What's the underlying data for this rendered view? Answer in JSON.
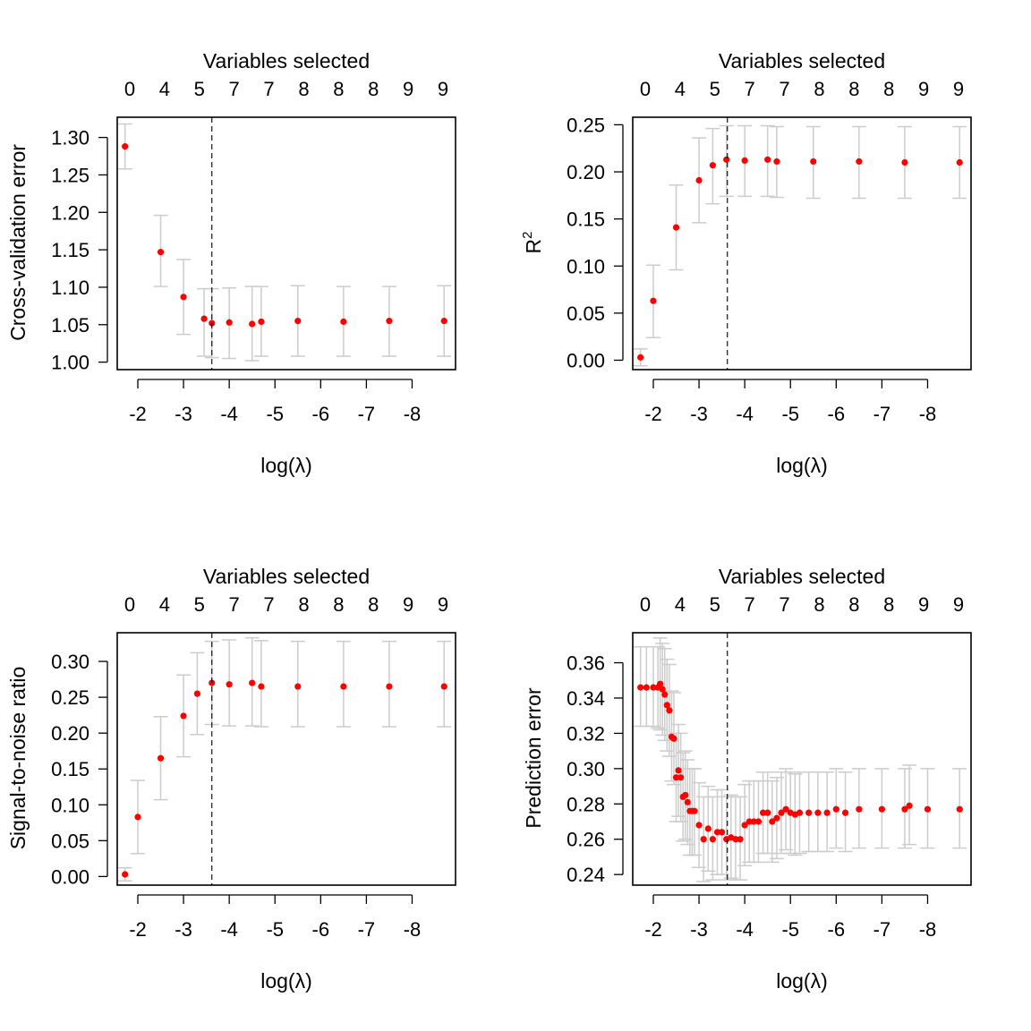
{
  "figure": {
    "background": "#ffffff"
  },
  "style": {
    "point_color": "#ff0000",
    "errorbar_color": "#cccccc",
    "vline_color": "#000000"
  },
  "chart_data": [
    {
      "type": "scatter",
      "title": "",
      "xlabel": "log(λ)",
      "ylabel": "Cross-validation error",
      "top_axis_label": "Variables selected",
      "top_ticks": [
        "0",
        "4",
        "5",
        "7",
        "7",
        "8",
        "8",
        "8",
        "9",
        "9"
      ],
      "xlim": [
        -1.55,
        -8.95
      ],
      "x_ticks": [
        -2,
        -3,
        -4,
        -5,
        -6,
        -7,
        -8
      ],
      "x_tick_labels": [
        "-2",
        "-3",
        "-4",
        "-5",
        "-6",
        "-7",
        "-8"
      ],
      "ylim": [
        0.99,
        1.327
      ],
      "y_ticks": [
        1.0,
        1.05,
        1.1,
        1.15,
        1.2,
        1.25,
        1.3
      ],
      "y_tick_labels": [
        "1.00",
        "1.05",
        "1.10",
        "1.15",
        "1.20",
        "1.25",
        "1.30"
      ],
      "vline_x": -3.62,
      "series": [
        {
          "x": [
            -1.72,
            -2.5,
            -3.0,
            -3.45,
            -3.62,
            -4.0,
            -4.5,
            -4.7,
            -5.5,
            -6.5,
            -7.5,
            -8.7
          ],
          "y": [
            1.288,
            1.147,
            1.087,
            1.058,
            1.052,
            1.053,
            1.051,
            1.054,
            1.055,
            1.054,
            1.055,
            1.055
          ],
          "err_lo": [
            1.258,
            1.101,
            1.037,
            1.008,
            1.006,
            1.005,
            1.002,
            1.008,
            1.008,
            1.008,
            1.008,
            1.008
          ],
          "err_hi": [
            1.318,
            1.196,
            1.137,
            1.098,
            1.098,
            1.099,
            1.101,
            1.101,
            1.102,
            1.101,
            1.101,
            1.102
          ]
        }
      ]
    },
    {
      "type": "scatter",
      "title": "",
      "xlabel": "log(λ)",
      "ylabel": "R",
      "ylabel_superscript": "2",
      "top_axis_label": "Variables selected",
      "top_ticks": [
        "0",
        "4",
        "5",
        "7",
        "7",
        "8",
        "8",
        "8",
        "9",
        "9"
      ],
      "xlim": [
        -1.55,
        -8.95
      ],
      "x_ticks": [
        -2,
        -3,
        -4,
        -5,
        -6,
        -7,
        -8
      ],
      "x_tick_labels": [
        "-2",
        "-3",
        "-4",
        "-5",
        "-6",
        "-7",
        "-8"
      ],
      "ylim": [
        -0.01,
        0.258
      ],
      "y_ticks": [
        0.0,
        0.05,
        0.1,
        0.15,
        0.2,
        0.25
      ],
      "y_tick_labels": [
        "0.00",
        "0.05",
        "0.10",
        "0.15",
        "0.20",
        "0.25"
      ],
      "vline_x": -3.62,
      "series": [
        {
          "x": [
            -1.72,
            -2.0,
            -2.5,
            -3.0,
            -3.3,
            -3.6,
            -4.0,
            -4.5,
            -4.7,
            -5.5,
            -6.5,
            -7.5,
            -8.7
          ],
          "y": [
            0.003,
            0.063,
            0.141,
            0.191,
            0.207,
            0.213,
            0.212,
            0.213,
            0.211,
            0.211,
            0.211,
            0.21,
            0.21
          ],
          "err_lo": [
            -0.006,
            0.024,
            0.096,
            0.146,
            0.166,
            0.174,
            0.174,
            0.174,
            0.173,
            0.172,
            0.172,
            0.172,
            0.172
          ],
          "err_hi": [
            0.012,
            0.101,
            0.186,
            0.236,
            0.246,
            0.249,
            0.249,
            0.249,
            0.248,
            0.248,
            0.248,
            0.248,
            0.248
          ]
        }
      ]
    },
    {
      "type": "scatter",
      "title": "",
      "xlabel": "log(λ)",
      "ylabel": "Signal-to-noise ratio",
      "top_axis_label": "Variables selected",
      "top_ticks": [
        "0",
        "4",
        "5",
        "7",
        "7",
        "8",
        "8",
        "8",
        "9",
        "9"
      ],
      "xlim": [
        -1.55,
        -8.95
      ],
      "x_ticks": [
        -2,
        -3,
        -4,
        -5,
        -6,
        -7,
        -8
      ],
      "x_tick_labels": [
        "-2",
        "-3",
        "-4",
        "-5",
        "-6",
        "-7",
        "-8"
      ],
      "ylim": [
        -0.012,
        0.34
      ],
      "y_ticks": [
        0.0,
        0.05,
        0.1,
        0.15,
        0.2,
        0.25,
        0.3
      ],
      "y_tick_labels": [
        "0.00",
        "0.05",
        "0.10",
        "0.15",
        "0.20",
        "0.25",
        "0.30"
      ],
      "vline_x": -3.62,
      "series": [
        {
          "x": [
            -1.72,
            -2.0,
            -2.5,
            -3.0,
            -3.3,
            -3.62,
            -4.0,
            -4.5,
            -4.7,
            -5.5,
            -6.5,
            -7.5,
            -8.7
          ],
          "y": [
            0.003,
            0.083,
            0.165,
            0.224,
            0.255,
            0.27,
            0.268,
            0.27,
            0.265,
            0.265,
            0.265,
            0.265,
            0.265
          ],
          "err_lo": [
            -0.006,
            0.032,
            0.107,
            0.167,
            0.198,
            0.212,
            0.21,
            0.21,
            0.209,
            0.209,
            0.209,
            0.209,
            0.209
          ],
          "err_hi": [
            0.012,
            0.134,
            0.223,
            0.281,
            0.312,
            0.328,
            0.33,
            0.333,
            0.329,
            0.328,
            0.328,
            0.328,
            0.328
          ]
        }
      ]
    },
    {
      "type": "scatter",
      "title": "",
      "xlabel": "log(λ)",
      "ylabel": "Prediction error",
      "top_axis_label": "Variables selected",
      "top_ticks": [
        "0",
        "4",
        "5",
        "7",
        "7",
        "8",
        "8",
        "8",
        "9",
        "9"
      ],
      "xlim": [
        -1.55,
        -8.95
      ],
      "x_ticks": [
        -2,
        -3,
        -4,
        -5,
        -6,
        -7,
        -8
      ],
      "x_tick_labels": [
        "-2",
        "-3",
        "-4",
        "-5",
        "-6",
        "-7",
        "-8"
      ],
      "ylim": [
        0.234,
        0.377
      ],
      "y_ticks": [
        0.24,
        0.26,
        0.28,
        0.3,
        0.32,
        0.34,
        0.36
      ],
      "y_tick_labels": [
        "0.24",
        "0.26",
        "0.28",
        "0.30",
        "0.32",
        "0.34",
        "0.36"
      ],
      "vline_x": -3.62,
      "series": [
        {
          "x": [
            -1.72,
            -1.85,
            -2.0,
            -2.1,
            -2.15,
            -2.2,
            -2.25,
            -2.3,
            -2.35,
            -2.4,
            -2.45,
            -2.5,
            -2.55,
            -2.6,
            -2.65,
            -2.7,
            -2.75,
            -2.8,
            -2.85,
            -2.9,
            -3.0,
            -3.1,
            -3.2,
            -3.3,
            -3.4,
            -3.5,
            -3.6,
            -3.7,
            -3.8,
            -3.9,
            -4.0,
            -4.1,
            -4.2,
            -4.3,
            -4.4,
            -4.5,
            -4.6,
            -4.7,
            -4.8,
            -4.9,
            -5.0,
            -5.1,
            -5.2,
            -5.4,
            -5.6,
            -5.8,
            -6.0,
            -6.2,
            -6.5,
            -7.0,
            -7.5,
            -7.6,
            -8.0,
            -8.7
          ],
          "y": [
            0.346,
            0.346,
            0.346,
            0.346,
            0.348,
            0.345,
            0.342,
            0.336,
            0.333,
            0.318,
            0.317,
            0.295,
            0.299,
            0.295,
            0.284,
            0.285,
            0.281,
            0.276,
            0.276,
            0.276,
            0.268,
            0.26,
            0.266,
            0.26,
            0.264,
            0.264,
            0.26,
            0.261,
            0.26,
            0.26,
            0.268,
            0.27,
            0.27,
            0.27,
            0.275,
            0.275,
            0.27,
            0.272,
            0.275,
            0.277,
            0.275,
            0.274,
            0.275,
            0.275,
            0.275,
            0.275,
            0.277,
            0.275,
            0.277,
            0.277,
            0.277,
            0.279,
            0.277,
            0.277
          ],
          "err_lo": [
            0.324,
            0.324,
            0.324,
            0.323,
            0.322,
            0.319,
            0.316,
            0.31,
            0.307,
            0.293,
            0.291,
            0.27,
            0.273,
            0.27,
            0.259,
            0.26,
            0.257,
            0.251,
            0.251,
            0.251,
            0.244,
            0.236,
            0.242,
            0.237,
            0.24,
            0.24,
            0.237,
            0.238,
            0.237,
            0.237,
            0.245,
            0.247,
            0.247,
            0.247,
            0.252,
            0.252,
            0.247,
            0.249,
            0.252,
            0.254,
            0.252,
            0.251,
            0.252,
            0.253,
            0.253,
            0.253,
            0.255,
            0.253,
            0.255,
            0.255,
            0.255,
            0.257,
            0.255,
            0.255
          ],
          "err_hi": [
            0.369,
            0.369,
            0.369,
            0.369,
            0.374,
            0.371,
            0.368,
            0.362,
            0.359,
            0.344,
            0.343,
            0.32,
            0.325,
            0.32,
            0.309,
            0.31,
            0.305,
            0.3,
            0.3,
            0.3,
            0.292,
            0.284,
            0.29,
            0.284,
            0.288,
            0.288,
            0.284,
            0.285,
            0.284,
            0.284,
            0.291,
            0.293,
            0.293,
            0.293,
            0.298,
            0.298,
            0.293,
            0.295,
            0.298,
            0.3,
            0.298,
            0.297,
            0.298,
            0.298,
            0.298,
            0.298,
            0.3,
            0.298,
            0.3,
            0.3,
            0.3,
            0.302,
            0.3,
            0.3
          ]
        }
      ]
    }
  ]
}
